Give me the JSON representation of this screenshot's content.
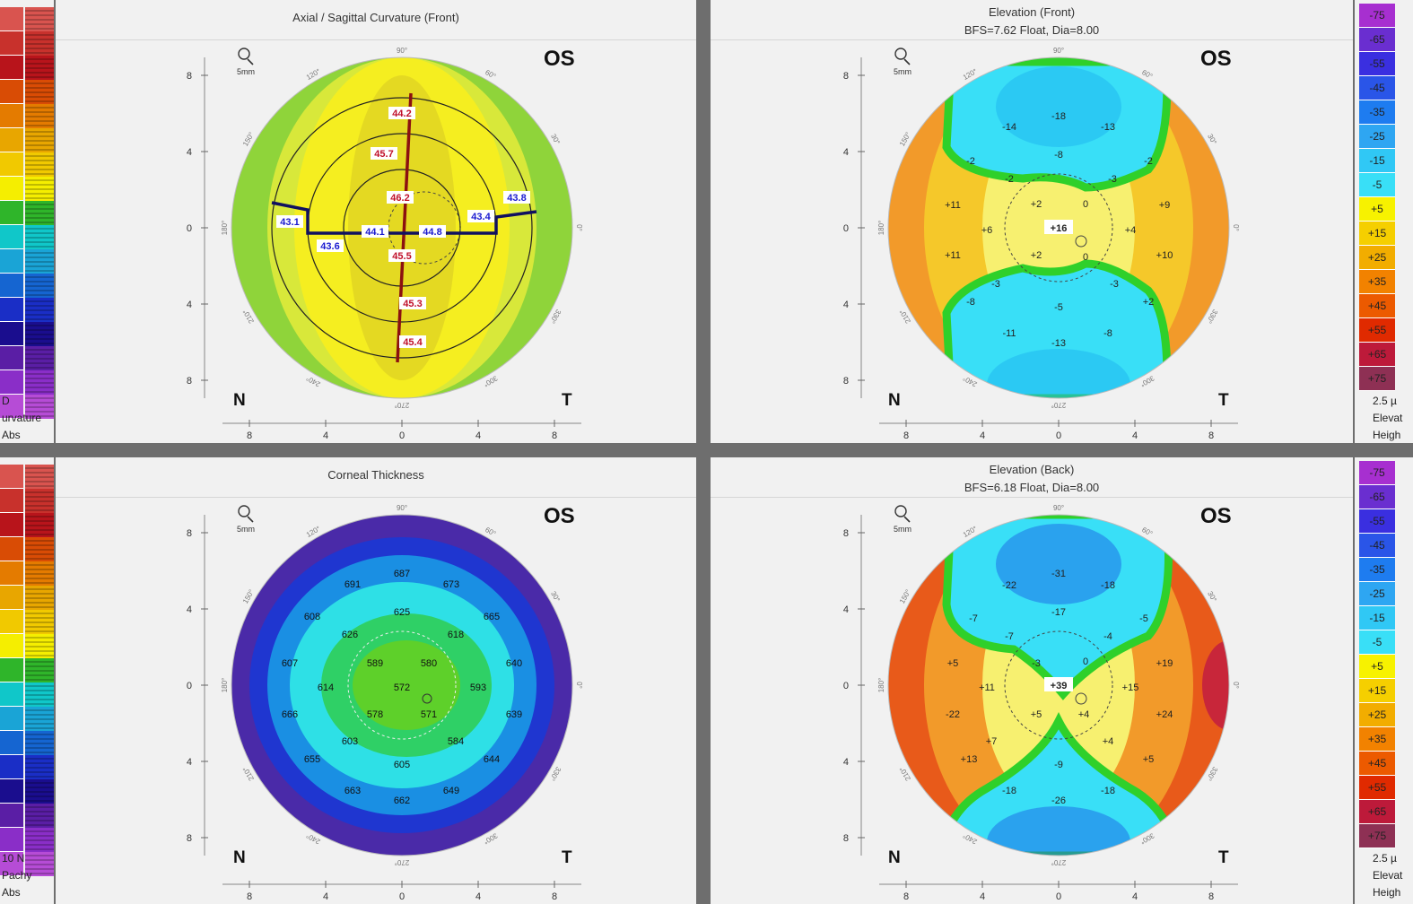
{
  "left_scale": {
    "colors": [
      "#d9544f",
      "#c8312c",
      "#b8141b",
      "#d94c05",
      "#e47b00",
      "#e8a600",
      "#f1c900",
      "#f5ee00",
      "#2fb52a",
      "#10c7c9",
      "#1aa4d6",
      "#1565d1",
      "#1a2ec6",
      "#1a0d8e",
      "#5a1ea5",
      "#8a2ec8",
      "#b64cd6"
    ],
    "bottom_texts": [
      "D",
      "urvature",
      "Abs"
    ],
    "bottom_texts_2": [
      "10 N",
      "Pachy",
      "Abs"
    ]
  },
  "right_scale": {
    "labels": [
      "-75",
      "-65",
      "-55",
      "-45",
      "-35",
      "-25",
      "-15",
      "-5",
      "+5",
      "+15",
      "+25",
      "+35",
      "+45",
      "+55",
      "+65",
      "+75"
    ],
    "colors": [
      "#a72fd0",
      "#6a2ed0",
      "#3a2fe0",
      "#2a55e8",
      "#1e7cf0",
      "#2ea6f2",
      "#30c8f5",
      "#39dff7",
      "#f7f200",
      "#f5cf00",
      "#f2ad00",
      "#f28200",
      "#ec5a00",
      "#e02a00",
      "#bd1a3a",
      "#8e3054"
    ],
    "bottom_texts": [
      "2.5 µ",
      "Elevat",
      "Heigh"
    ],
    "bottom_texts_2": [
      "2.5 µ",
      "Elevat",
      "Heigh"
    ]
  },
  "panels": [
    {
      "id": "axial",
      "title": "Axial / Sagittal Curvature (Front)",
      "subtitle": "",
      "eye": "OS",
      "n_label": "N",
      "t_label": "T",
      "zoom_label": "5mm",
      "axis_ticks": [
        "8",
        "4",
        "0",
        "4",
        "8"
      ],
      "angle_labels": [
        "90°",
        "60°",
        "30°",
        "0°",
        "330°",
        "300°",
        "270°",
        "240°",
        "210°",
        "180°",
        "150°",
        "120°"
      ],
      "colors": {
        "outer": "#8fd43a",
        "mid": "#d8e83a",
        "inner": "#f5ee20",
        "center": "#ddd023"
      },
      "values": [
        {
          "t": "44.2",
          "c": "red"
        },
        {
          "t": "45.7",
          "c": "red"
        },
        {
          "t": "46.2",
          "c": "red"
        },
        {
          "t": "45.5",
          "c": "red"
        },
        {
          "t": "45.3",
          "c": "red"
        },
        {
          "t": "45.4",
          "c": "red"
        },
        {
          "t": "43.1",
          "c": "blue"
        },
        {
          "t": "43.6",
          "c": "blue"
        },
        {
          "t": "44.1",
          "c": "blue"
        },
        {
          "t": "44.8",
          "c": "blue"
        },
        {
          "t": "43.4",
          "c": "blue"
        },
        {
          "t": "43.8",
          "c": "blue"
        }
      ]
    },
    {
      "id": "elev-front",
      "title": "Elevation (Front)",
      "subtitle": "BFS=7.62 Float, Dia=8.00",
      "eye": "OS",
      "n_label": "N",
      "t_label": "T",
      "zoom_label": "5mm",
      "axis_ticks": [
        "8",
        "4",
        "0",
        "4",
        "8"
      ],
      "angle_labels": [
        "90°",
        "60°",
        "30°",
        "0°",
        "330°",
        "300°",
        "270°",
        "240°",
        "210°",
        "180°",
        "150°",
        "120°"
      ],
      "colors": {
        "outer": "#f29a2a",
        "mid": "#f5c82a",
        "inner": "#f7f070",
        "blue": "#39dff7",
        "blue_deep": "#20b6f0",
        "green": "#2fd02a"
      },
      "values": [
        "-18",
        "-14",
        "-13",
        "-8",
        "-2",
        "-2",
        "-2",
        "-3",
        "+2",
        "0",
        "+11",
        "+6",
        "+4",
        "+9",
        "+11",
        "+2",
        "0",
        "+10",
        "-3",
        "-3",
        "-8",
        "+2",
        "-5",
        "-11",
        "-13",
        "-8"
      ],
      "center_value": "+16"
    },
    {
      "id": "thickness",
      "title": "Corneal Thickness",
      "subtitle": "",
      "eye": "OS",
      "n_label": "N",
      "t_label": "T",
      "zoom_label": "5mm",
      "axis_ticks": [
        "8",
        "4",
        "0",
        "4",
        "8"
      ],
      "angle_labels": [
        "90°",
        "60°",
        "30°",
        "0°",
        "330°",
        "300°",
        "270°",
        "240°",
        "210°",
        "180°",
        "150°",
        "120°"
      ],
      "colors": {
        "outer": "#4a2aa8",
        "ring2": "#1f36d0",
        "ring3": "#1a8fe3",
        "ring4": "#2ee0e6",
        "ring5": "#2fd066",
        "center": "#5ed02a"
      },
      "values": [
        "687",
        "691",
        "673",
        "608",
        "625",
        "665",
        "626",
        "618",
        "607",
        "589",
        "580",
        "640",
        "614",
        "572",
        "593",
        "666",
        "578",
        "571",
        "639",
        "603",
        "584",
        "655",
        "605",
        "644",
        "663",
        "662",
        "649"
      ]
    },
    {
      "id": "elev-back",
      "title": "Elevation (Back)",
      "subtitle": "BFS=6.18 Float, Dia=8.00",
      "eye": "OS",
      "n_label": "N",
      "t_label": "T",
      "zoom_label": "5mm",
      "axis_ticks": [
        "8",
        "4",
        "0",
        "4",
        "8"
      ],
      "angle_labels": [
        "90°",
        "60°",
        "30°",
        "0°",
        "330°",
        "300°",
        "270°",
        "240°",
        "210°",
        "180°",
        "150°",
        "120°"
      ],
      "colors": {
        "outer": "#e85a1a",
        "mid": "#f29a2a",
        "inner": "#f7f070",
        "blue": "#39dff7",
        "blue_deep": "#1f6fe8",
        "green": "#2fd02a",
        "dark": "#c8263a"
      },
      "values": [
        "-22",
        "-31",
        "-18",
        "-7",
        "-17",
        "-5",
        "-7",
        "-4",
        "+5",
        "-3",
        "0",
        "+19",
        "+11",
        "+15",
        "-22",
        "+5",
        "+4",
        "+24",
        "+7",
        "+4",
        "+13",
        "-9",
        "+5",
        "-18",
        "-26",
        "-18"
      ],
      "center_value": "+39"
    }
  ]
}
